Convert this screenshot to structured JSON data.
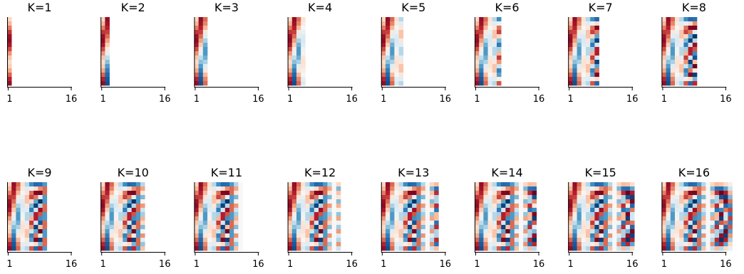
{
  "chart_data": {
    "type": "heatmap",
    "layout": {
      "rows": 2,
      "cols": 8
    },
    "colormap": {
      "name": "RdBu",
      "stops": [
        "#67001f",
        "#b2182b",
        "#d6604d",
        "#f4a582",
        "#fddbc7",
        "#f7f7f7",
        "#d1e5f0",
        "#92c5de",
        "#4393c3",
        "#2166ac",
        "#053061"
      ]
    },
    "n_rows_per_panel": 16,
    "x_axis": {
      "min": 1,
      "max": 16,
      "tick_labels": [
        "1",
        "16"
      ]
    },
    "grid": false,
    "legend": "none",
    "panels": [
      {
        "title": "K=1",
        "k": 1
      },
      {
        "title": "K=2",
        "k": 2
      },
      {
        "title": "K=3",
        "k": 3
      },
      {
        "title": "K=4",
        "k": 4
      },
      {
        "title": "K=5",
        "k": 5
      },
      {
        "title": "K=6",
        "k": 6
      },
      {
        "title": "K=7",
        "k": 7
      },
      {
        "title": "K=8",
        "k": 8
      },
      {
        "title": "K=9",
        "k": 9
      },
      {
        "title": "K=10",
        "k": 10
      },
      {
        "title": "K=11",
        "k": 11
      },
      {
        "title": "K=12",
        "k": 12
      },
      {
        "title": "K=13",
        "k": 13
      },
      {
        "title": "K=14",
        "k": 14
      },
      {
        "title": "K=15",
        "k": 15
      },
      {
        "title": "K=16",
        "k": 16
      }
    ]
  }
}
